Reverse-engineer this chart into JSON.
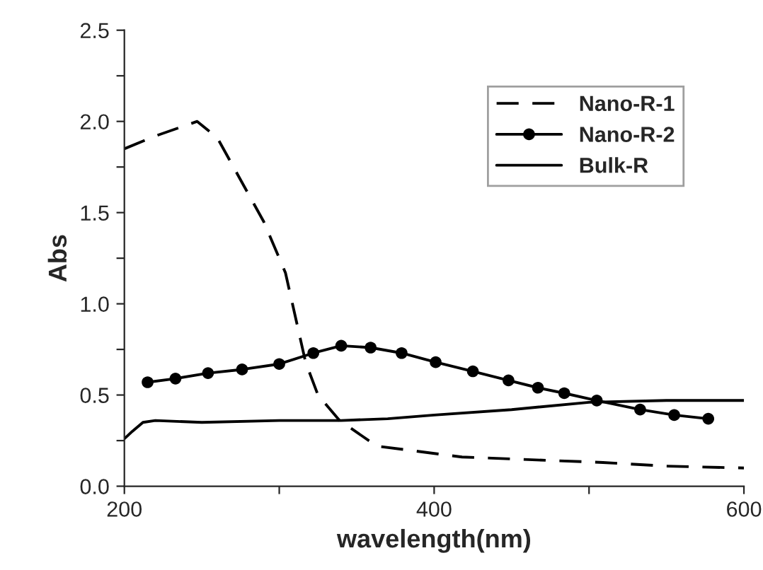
{
  "chart_data": {
    "type": "line",
    "xlabel": "wavelength(nm)",
    "ylabel": "Abs",
    "xlim": [
      200,
      600
    ],
    "ylim": [
      0,
      2.5
    ],
    "xticks": [
      200,
      {
        "value": 300,
        "label": null
      },
      400,
      {
        "value": 500,
        "label": null
      },
      600
    ],
    "yticks": [
      {
        "value": 0,
        "label": "0.0"
      },
      {
        "value": 0.25,
        "label": null
      },
      {
        "value": 0.5,
        "label": "0.5"
      },
      {
        "value": 0.75,
        "label": null
      },
      {
        "value": 1.0,
        "label": "1.0"
      },
      {
        "value": 1.25,
        "label": null
      },
      {
        "value": 1.5,
        "label": "1.5"
      },
      {
        "value": 1.75,
        "label": null
      },
      {
        "value": 2.0,
        "label": "2.0"
      },
      {
        "value": 2.25,
        "label": null
      },
      {
        "value": 2.5,
        "label": "2.5"
      }
    ],
    "legend": "top right",
    "grid": false,
    "series": [
      {
        "name": "Nano-R-1",
        "color": "#000000",
        "line_style": "dashed",
        "marker": "none",
        "x": [
          200,
          220,
          247,
          260,
          275,
          290,
          304,
          317,
          325,
          339,
          363,
          418,
          509,
          550,
          600
        ],
        "values": [
          1.85,
          1.92,
          2.0,
          1.91,
          1.68,
          1.45,
          1.17,
          0.68,
          0.5,
          0.36,
          0.22,
          0.16,
          0.13,
          0.11,
          0.1
        ]
      },
      {
        "name": "Nano-R-2",
        "color": "#000000",
        "line_style": "solid",
        "marker": "circle",
        "x": [
          215,
          233,
          254,
          276,
          300,
          322,
          340,
          359,
          379,
          401,
          425,
          448,
          467,
          484,
          505,
          533,
          555,
          577
        ],
        "values": [
          0.57,
          0.59,
          0.62,
          0.64,
          0.67,
          0.73,
          0.77,
          0.76,
          0.73,
          0.68,
          0.63,
          0.58,
          0.54,
          0.51,
          0.47,
          0.42,
          0.39,
          0.37
        ]
      },
      {
        "name": "Bulk-R",
        "color": "#000000",
        "line_style": "solid",
        "marker": "none",
        "x": [
          200,
          205,
          212,
          220,
          250,
          300,
          340,
          370,
          400,
          450,
          500,
          550,
          600
        ],
        "values": [
          0.26,
          0.3,
          0.35,
          0.36,
          0.35,
          0.36,
          0.36,
          0.37,
          0.39,
          0.42,
          0.46,
          0.47,
          0.47
        ]
      }
    ]
  }
}
